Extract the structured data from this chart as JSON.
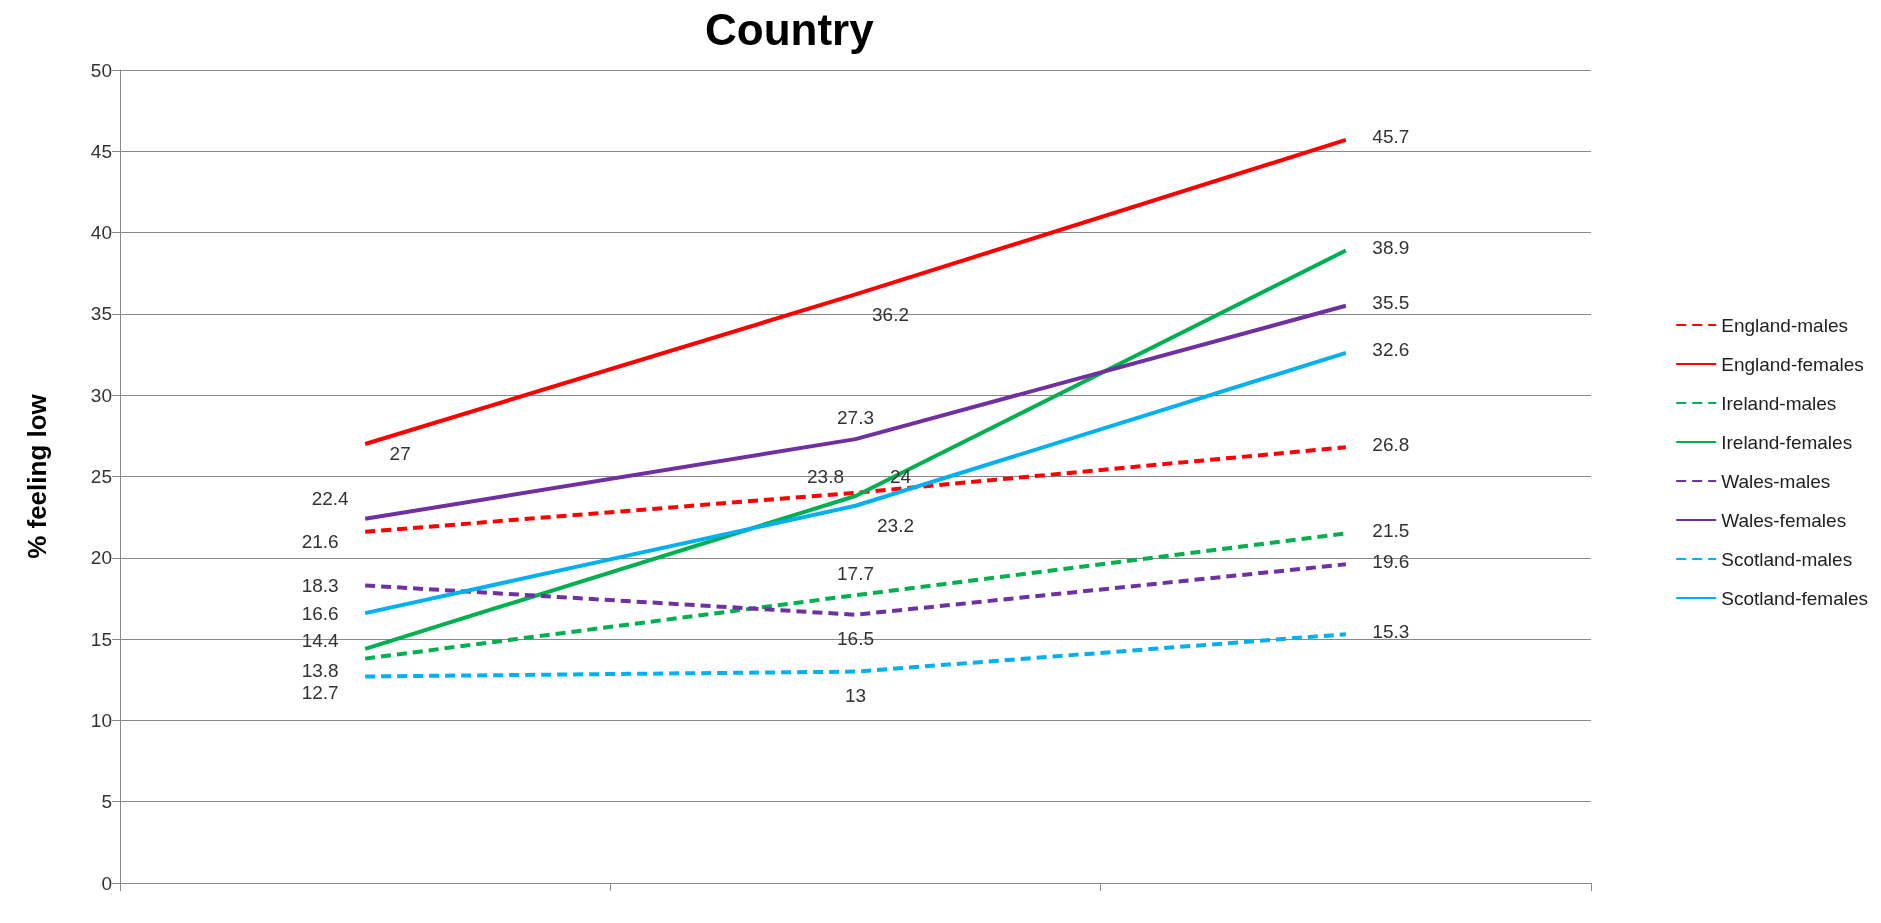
{
  "chart_data": {
    "type": "line",
    "title": "Country",
    "ylabel": "% feeling low",
    "categories": [
      null,
      null,
      null
    ],
    "series": [
      {
        "name": "England-males",
        "color": "#ff0000",
        "line_style": "dashed",
        "values": [
          21.6,
          24,
          26.8
        ]
      },
      {
        "name": "England-females",
        "color": "#ff0000",
        "line_style": "solid",
        "values": [
          27,
          36.2,
          45.7
        ]
      },
      {
        "name": "Ireland-males",
        "color": "#00b050",
        "line_style": "dashed",
        "values": [
          13.8,
          17.7,
          21.5
        ]
      },
      {
        "name": "Ireland-females",
        "color": "#00b050",
        "line_style": "solid",
        "values": [
          14.4,
          23.8,
          38.9
        ]
      },
      {
        "name": "Wales-males",
        "color": "#7030a0",
        "line_style": "dashed",
        "values": [
          18.3,
          16.5,
          19.6
        ]
      },
      {
        "name": "Wales-females",
        "color": "#7030a0",
        "line_style": "solid",
        "values": [
          22.4,
          27.3,
          35.5
        ]
      },
      {
        "name": "Scotland-males",
        "color": "#00b0f0",
        "line_style": "dashed",
        "values": [
          12.7,
          13,
          15.3
        ]
      },
      {
        "name": "Scotland-females",
        "color": "#00b0f0",
        "line_style": "solid",
        "values": [
          16.6,
          23.2,
          32.6
        ]
      }
    ],
    "ylim": [
      0,
      50
    ],
    "yticks": [
      0,
      5,
      10,
      15,
      20,
      25,
      30,
      35,
      40,
      45,
      50
    ],
    "grid": "y",
    "legend": "right",
    "marker": "none",
    "data_labels": true
  }
}
